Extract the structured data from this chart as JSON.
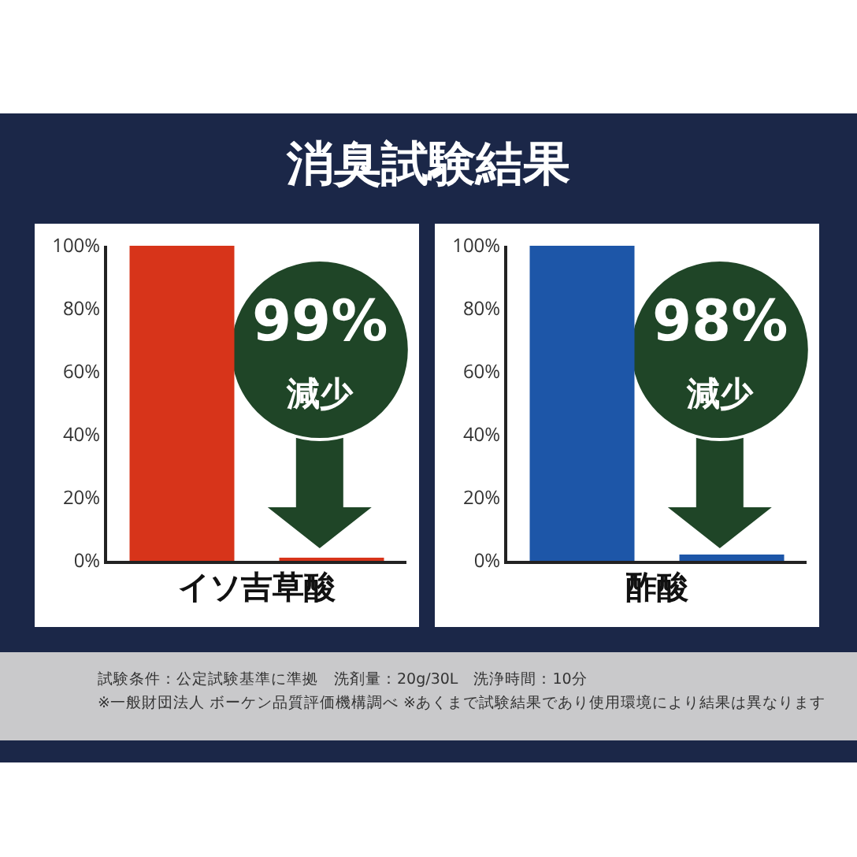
{
  "chart_data": [
    {
      "type": "bar",
      "title": "消臭試験結果",
      "categories": [
        null,
        null
      ],
      "values": [
        100,
        1
      ],
      "color": "#d7341a",
      "xlabel": "イソ吉草酸",
      "ylim": [
        0,
        100
      ],
      "yticks": [
        {
          "value": 0,
          "label": "0%"
        },
        {
          "value": 20,
          "label": "20%"
        },
        {
          "value": 40,
          "label": "40%"
        },
        {
          "value": 60,
          "label": "60%"
        },
        {
          "value": 80,
          "label": "80%"
        },
        {
          "value": 100,
          "label": "100%"
        }
      ],
      "tick_labels": "y",
      "grid": false,
      "annotations": [
        "99%",
        "減少",
        "試験条件：公定試験基準に準拠　洗剤量：20g/30L　洗浄時間：10分",
        "※一般財団法人 ボーケン品質評価機構調べ ※あくまで試験結果であり使用環境により結果は異なります"
      ]
    },
    {
      "type": "bar",
      "categories": [
        null,
        null
      ],
      "values": [
        100,
        2
      ],
      "color": "#1d56a8",
      "xlabel": "酢酸",
      "ylim": [
        0,
        100
      ],
      "yticks": [
        {
          "value": 0,
          "label": "0%"
        },
        {
          "value": 20,
          "label": "20%"
        },
        {
          "value": 40,
          "label": "40%"
        },
        {
          "value": 60,
          "label": "60%"
        },
        {
          "value": 80,
          "label": "80%"
        },
        {
          "value": 100,
          "label": "100%"
        }
      ],
      "tick_labels": "y",
      "grid": false,
      "annotations": [
        "98%",
        "減少"
      ]
    }
  ]
}
